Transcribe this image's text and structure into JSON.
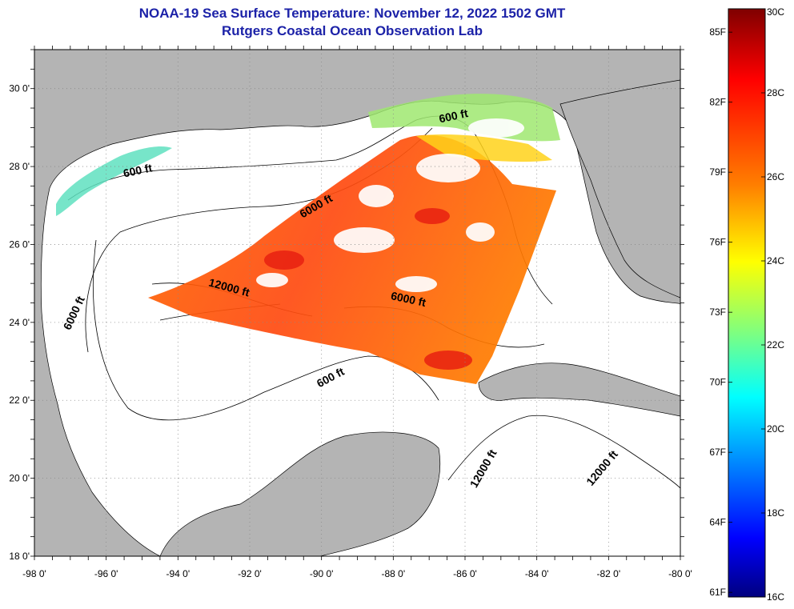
{
  "title": {
    "line1": "NOAA-19 Sea Surface Temperature:  November 12, 2022 1502 GMT",
    "line2": "Rutgers Coastal Ocean Observation Lab"
  },
  "map": {
    "lon_range": [
      -98,
      -80
    ],
    "lat_range": [
      18,
      31
    ],
    "x_ticks": [
      {
        "lon": -98,
        "label": "-98 0'"
      },
      {
        "lon": -96,
        "label": "-96 0'"
      },
      {
        "lon": -94,
        "label": "-94 0'"
      },
      {
        "lon": -92,
        "label": "-92 0'"
      },
      {
        "lon": -90,
        "label": "-90 0'"
      },
      {
        "lon": -88,
        "label": "-88 0'"
      },
      {
        "lon": -86,
        "label": "-86 0'"
      },
      {
        "lon": -84,
        "label": "-84 0'"
      },
      {
        "lon": -82,
        "label": "-82 0'"
      },
      {
        "lon": -80,
        "label": "-80 0'"
      }
    ],
    "y_ticks": [
      {
        "lat": 30,
        "label": "30 0'"
      },
      {
        "lat": 28,
        "label": "28 0'"
      },
      {
        "lat": 26,
        "label": "26 0'"
      },
      {
        "lat": 24,
        "label": "24 0'"
      },
      {
        "lat": 22,
        "label": "22 0'"
      },
      {
        "lat": 20,
        "label": "20 0'"
      },
      {
        "lat": 18,
        "label": "18 0'"
      }
    ],
    "contour_labels": [
      {
        "text": "600 ft",
        "lon": -95.1,
        "lat": 27.8,
        "rot": -12
      },
      {
        "text": "600 ft",
        "lon": -86.3,
        "lat": 29.2,
        "rot": -12
      },
      {
        "text": "6000 ft",
        "lon": -90.1,
        "lat": 26.9,
        "rot": -30
      },
      {
        "text": "12000 ft",
        "lon": -92.6,
        "lat": 24.8,
        "rot": 15
      },
      {
        "text": "6000 ft",
        "lon": -87.6,
        "lat": 24.5,
        "rot": 12
      },
      {
        "text": "6000 ft",
        "lon": -96.8,
        "lat": 24.2,
        "rot": -65
      },
      {
        "text": "600 ft",
        "lon": -89.7,
        "lat": 22.5,
        "rot": -28
      },
      {
        "text": "12000 ft",
        "lon": -85.4,
        "lat": 20.2,
        "rot": -60
      },
      {
        "text": "12000 ft",
        "lon": -82.1,
        "lat": 20.2,
        "rot": -50
      }
    ],
    "colors": {
      "land": "#b4b4b4",
      "ocean": "#ffffff",
      "grid": "#888888"
    }
  },
  "colorbar": {
    "celsius": [
      {
        "v": 30,
        "label": "30C"
      },
      {
        "v": 28,
        "label": "28C"
      },
      {
        "v": 26,
        "label": "26C"
      },
      {
        "v": 24,
        "label": "24C"
      },
      {
        "v": 22,
        "label": "22C"
      },
      {
        "v": 20,
        "label": "20C"
      },
      {
        "v": 18,
        "label": "18C"
      },
      {
        "v": 16,
        "label": "16C"
      }
    ],
    "fahrenheit": [
      {
        "v": 85,
        "label": "85F"
      },
      {
        "v": 82,
        "label": "82F"
      },
      {
        "v": 79,
        "label": "79F"
      },
      {
        "v": 76,
        "label": "76F"
      },
      {
        "v": 73,
        "label": "73F"
      },
      {
        "v": 70,
        "label": "70F"
      },
      {
        "v": 67,
        "label": "67F"
      },
      {
        "v": 64,
        "label": "64F"
      },
      {
        "v": 61,
        "label": "61F"
      }
    ],
    "range_c": [
      16,
      30
    ],
    "stops": [
      "#7f0000",
      "#ff0000",
      "#ff7f00",
      "#ffff00",
      "#7fff7f",
      "#00ffff",
      "#007fff",
      "#0000ff",
      "#00007f"
    ]
  }
}
